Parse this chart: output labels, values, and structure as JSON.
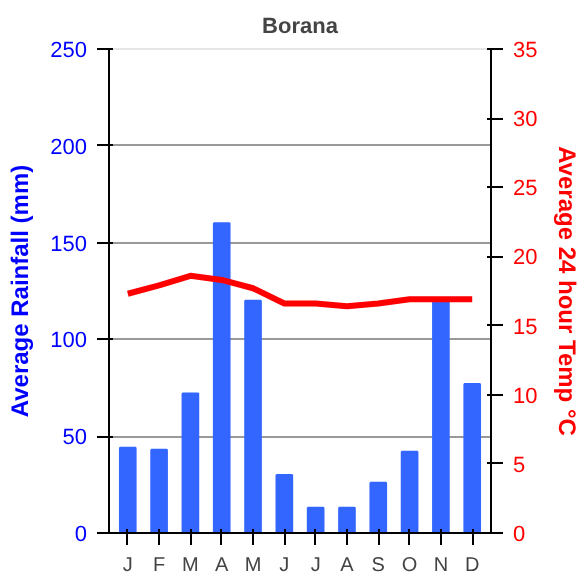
{
  "chart_data": {
    "type": "bar",
    "title": "Borana",
    "categories": [
      "J",
      "F",
      "M",
      "A",
      "M",
      "J",
      "J",
      "A",
      "S",
      "O",
      "N",
      "D"
    ],
    "series": [
      {
        "color": "#3366ff",
        "values": [
          44,
          43,
          72,
          160,
          120,
          30,
          13,
          13,
          26,
          42,
          120,
          77
        ]
      },
      {
        "type": "line",
        "axis": "y2",
        "color": "#ff0000",
        "values": [
          17.3,
          17.9,
          18.6,
          18.3,
          17.7,
          16.6,
          16.6,
          16.4,
          16.6,
          16.9,
          16.9,
          16.9
        ]
      }
    ],
    "ylabel": "Average Rainfall (mm)",
    "y2label": "Average 24 hour Temp °C",
    "ylim": [
      0,
      250
    ],
    "yticks": [
      0,
      50,
      100,
      150,
      200,
      250
    ],
    "y2lim": [
      0,
      35
    ],
    "y2ticks": [
      0,
      5,
      10,
      15,
      20,
      25,
      30,
      35
    ],
    "grid": "y"
  }
}
